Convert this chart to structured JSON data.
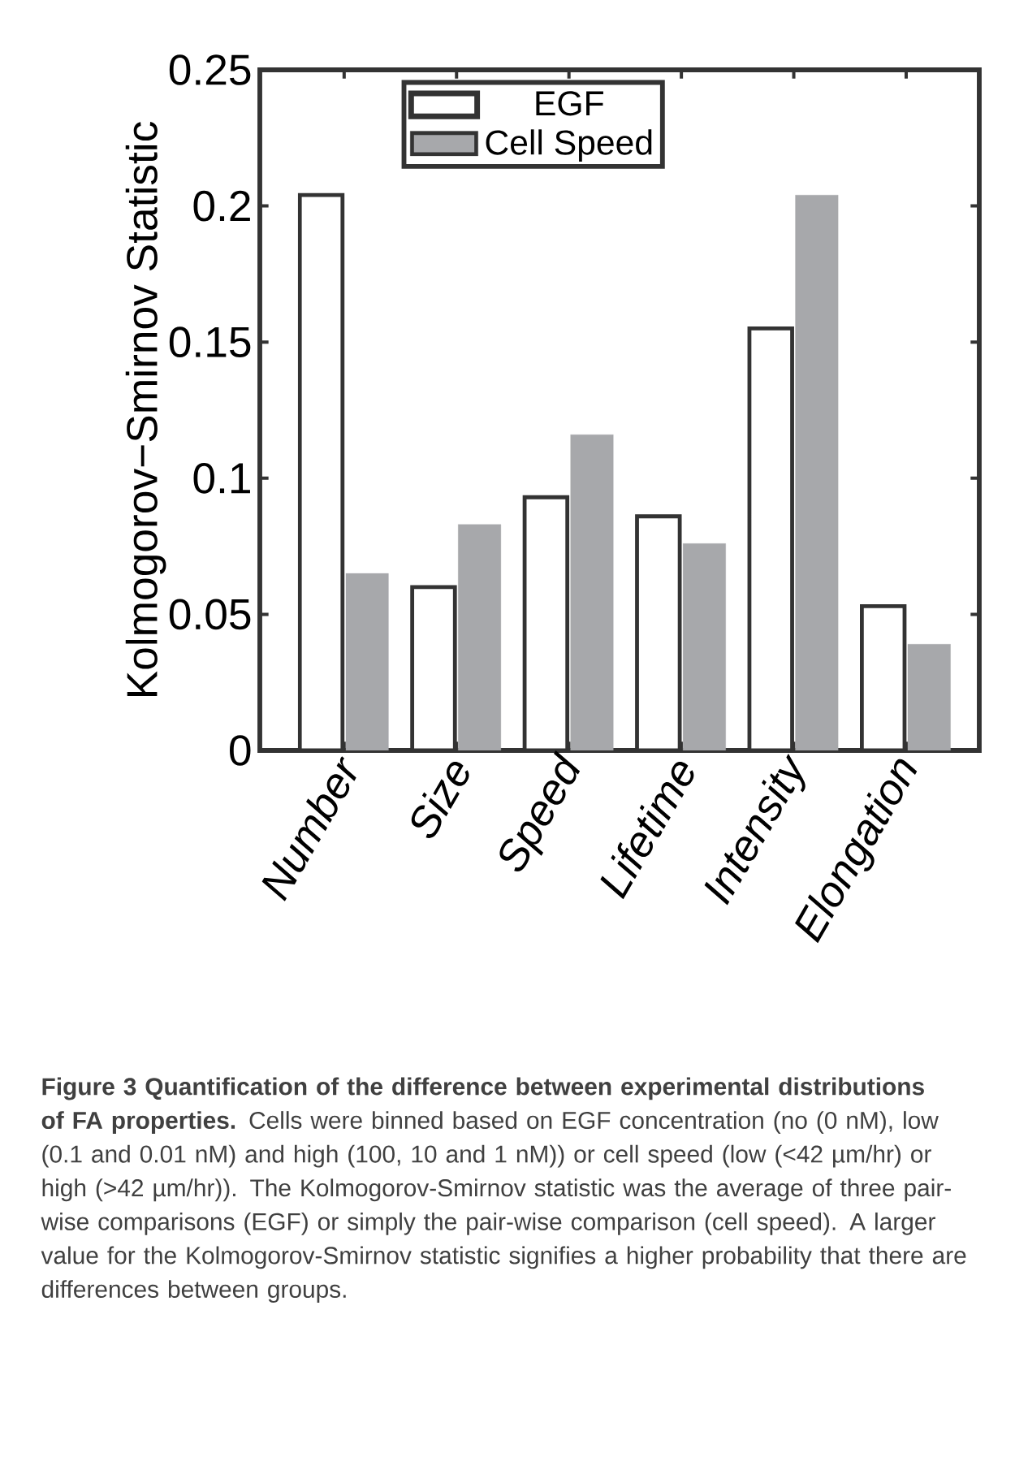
{
  "chart_data": {
    "type": "bar",
    "ylabel": "Kolmogorov−Smirnov Statistic",
    "categories": [
      "Number",
      "Size",
      "Speed",
      "Lifetime",
      "Intensity",
      "Elongation"
    ],
    "series": [
      {
        "name": "EGF",
        "color": "#ffffff",
        "values": [
          0.204,
          0.06,
          0.093,
          0.086,
          0.155,
          0.053
        ]
      },
      {
        "name": "Cell Speed",
        "color": "#a7a8ab",
        "values": [
          0.065,
          0.083,
          0.116,
          0.076,
          0.204,
          0.039
        ]
      }
    ],
    "ylim": [
      0,
      0.25
    ],
    "yticks": [
      0,
      0.05,
      0.1,
      0.15,
      0.2,
      0.25
    ],
    "grid": false,
    "legend": "top",
    "annotations": [
      "**Figure 3 Quantification of the difference between experimental distributions of FA properties.** Cells were binned based on EGF concentration (no (0 nM), low (0.1 and 0.01 nM) and high (100, 10 and 1 nM)) or cell speed (low (<42 µm/hr) or high (>42 µm/hr)). The Kolmogorov-Smirnov statistic was the average of three pair-wise comparisons (EGF) or simply the pair-wise comparison (cell speed). A larger value for the Kolmogorov-Smirnov statistic signifies a higher probability that there are differences between groups."
    ]
  }
}
